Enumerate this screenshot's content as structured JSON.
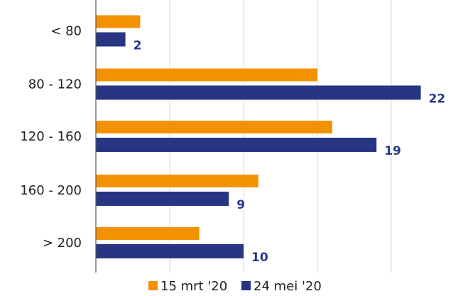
{
  "chart_data": {
    "type": "bar",
    "orientation": "horizontal",
    "categories": [
      "< 80",
      "80 - 120",
      "120 - 160",
      "160 - 200",
      "> 200"
    ],
    "series": [
      {
        "name": "15 mrt '20",
        "values": [
          3,
          15,
          16,
          11,
          7
        ],
        "color": "#f39200",
        "show_labels": false
      },
      {
        "name": "24 mei '20",
        "values": [
          2,
          22,
          19,
          9,
          10
        ],
        "color": "#283583",
        "show_labels": true
      }
    ],
    "xlim": [
      0,
      25
    ],
    "grid": true,
    "legend_position": "bottom"
  }
}
